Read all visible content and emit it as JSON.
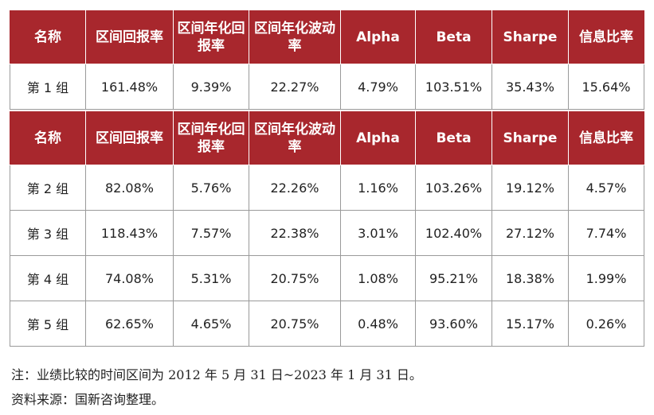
{
  "headers": [
    "名称",
    "区间回报率",
    "区间年化回报率",
    "区间年化波动率",
    "Alpha",
    "Beta",
    "Sharpe",
    "信息比率"
  ],
  "table1": {
    "rows": [
      [
        "第 1 组",
        "161.48%",
        "9.39%",
        "22.27%",
        "4.79%",
        "103.51%",
        "35.43%",
        "15.64%"
      ]
    ]
  },
  "table2": {
    "rows": [
      [
        "第 2 组",
        "82.08%",
        "5.76%",
        "22.26%",
        "1.16%",
        "103.26%",
        "19.12%",
        "4.57%"
      ],
      [
        "第 3 组",
        "118.43%",
        "7.57%",
        "22.38%",
        "3.01%",
        "102.40%",
        "27.12%",
        "7.74%"
      ],
      [
        "第 4 组",
        "74.08%",
        "5.31%",
        "20.75%",
        "1.08%",
        "95.21%",
        "18.38%",
        "1.99%"
      ],
      [
        "第 5 组",
        "62.65%",
        "4.65%",
        "20.75%",
        "0.48%",
        "93.60%",
        "15.17%",
        "0.26%"
      ]
    ]
  },
  "notes": {
    "period": "注：业绩比较的时间区间为 2012 年 5 月 31 日~2023 年 1 月 31 日。",
    "source": "资料来源：国新咨询整理。"
  },
  "colors": {
    "header_bg": "#a8272d",
    "header_text": "#ffffff",
    "cell_border": "#9a9a9a"
  }
}
